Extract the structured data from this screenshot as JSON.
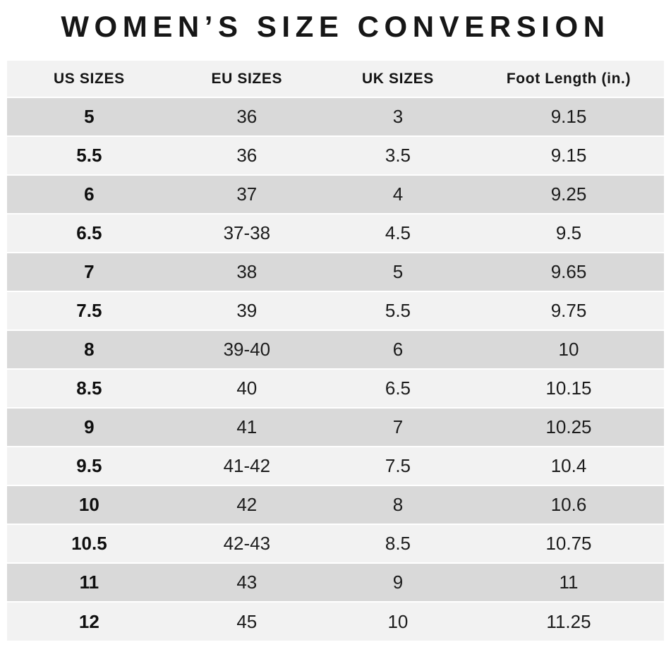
{
  "title": "WOMEN’S SIZE CONVERSION",
  "colors": {
    "row_dark": "#d9d9d9",
    "row_light": "#f2f2f2",
    "header_bg": "#f2f2f2",
    "text": "#1c1c1c"
  },
  "chart_data": {
    "type": "table",
    "title": "WOMEN’S SIZE CONVERSION",
    "columns": [
      "US SIZES",
      "EU SIZES",
      "UK SIZES",
      "Foot Length (in.)"
    ],
    "rows": [
      [
        "5",
        "36",
        "3",
        "9.15"
      ],
      [
        "5.5",
        "36",
        "3.5",
        "9.15"
      ],
      [
        "6",
        "37",
        "4",
        "9.25"
      ],
      [
        "6.5",
        "37-38",
        "4.5",
        "9.5"
      ],
      [
        "7",
        "38",
        "5",
        "9.65"
      ],
      [
        "7.5",
        "39",
        "5.5",
        "9.75"
      ],
      [
        "8",
        "39-40",
        "6",
        "10"
      ],
      [
        "8.5",
        "40",
        "6.5",
        "10.15"
      ],
      [
        "9",
        "41",
        "7",
        "10.25"
      ],
      [
        "9.5",
        "41-42",
        "7.5",
        "10.4"
      ],
      [
        "10",
        "42",
        "8",
        "10.6"
      ],
      [
        "10.5",
        "42-43",
        "8.5",
        "10.75"
      ],
      [
        "11",
        "43",
        "9",
        "11"
      ],
      [
        "12",
        "45",
        "10",
        "11.25"
      ]
    ],
    "layout": {
      "legend": "none",
      "grid": "off",
      "row_striping": "alternating starting dark",
      "first_column_bold": true
    }
  }
}
